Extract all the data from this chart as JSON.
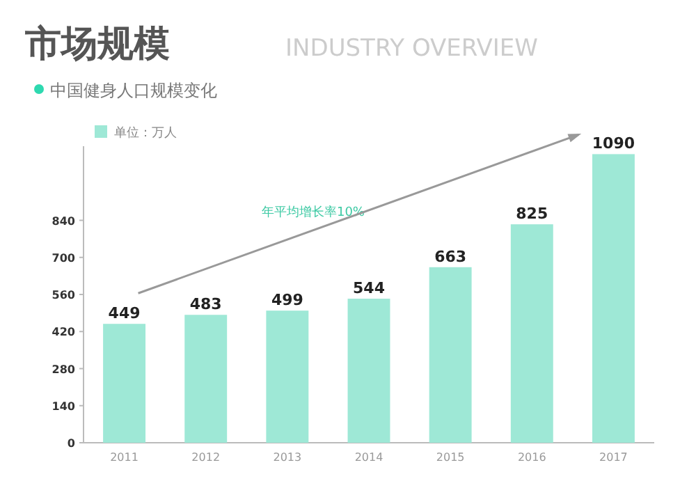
{
  "chart_data": {
    "type": "bar",
    "title": "市场规模",
    "subtitle": "INDUSTRY OVERVIEW",
    "annotations": [
      "中国健身人口规模变化",
      "年平均增长率10%"
    ],
    "categories": [
      "2011",
      "2012",
      "2013",
      "2014",
      "2015",
      "2016",
      "2017"
    ],
    "series": [
      {
        "name": "单位：万人",
        "color": "#9ee8d6",
        "values": [
          449,
          483,
          499,
          544,
          663,
          825,
          1090
        ]
      }
    ],
    "ylim": [
      0,
      1120
    ],
    "yticks": [
      0,
      140,
      280,
      420,
      560,
      700,
      840
    ],
    "data_labels": true,
    "legend": "top left",
    "grid": false
  }
}
